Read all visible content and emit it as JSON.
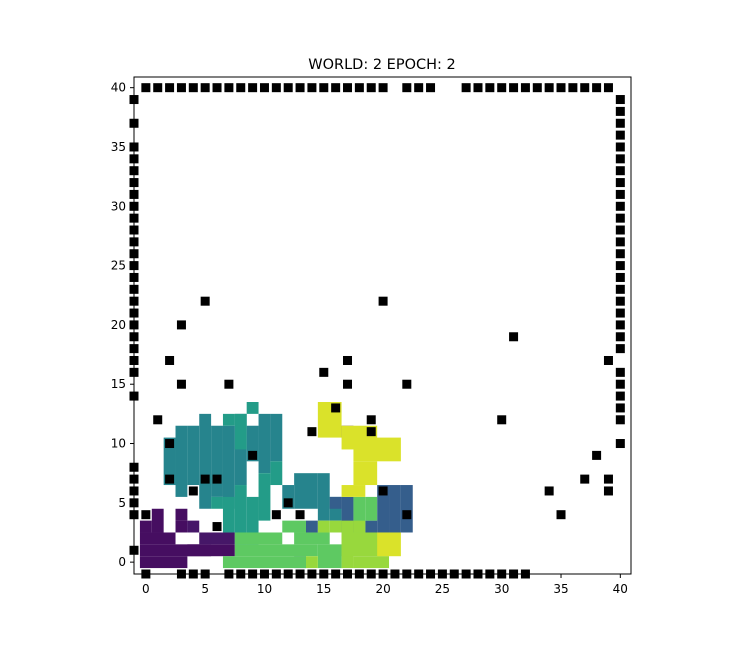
{
  "chart_data": {
    "type": "heatmap",
    "title": "WORLD: 2 EPOCH: 2",
    "xlim": [
      -1,
      40.9
    ],
    "ylim": [
      -1,
      40.9
    ],
    "xticks": [
      0,
      5,
      10,
      15,
      20,
      25,
      30,
      35,
      40
    ],
    "yticks": [
      0,
      5,
      10,
      15,
      20,
      25,
      30,
      35,
      40
    ],
    "xtick_labels": [
      "0",
      "5",
      "10",
      "15",
      "20",
      "25",
      "30",
      "35",
      "40"
    ],
    "ytick_labels": [
      "0",
      "5",
      "10",
      "15",
      "20",
      "25",
      "30",
      "35",
      "40"
    ],
    "colormap": "viridis",
    "cells": [
      {
        "v": 0.05,
        "c": [
          [
            0,
            0,
            3,
            0
          ],
          [
            0,
            1,
            5,
            1
          ],
          [
            0,
            2,
            2,
            2
          ],
          [
            0,
            3,
            0,
            3
          ],
          [
            1,
            3,
            1,
            4
          ],
          [
            3,
            3,
            3,
            3
          ],
          [
            3,
            4,
            3,
            4
          ],
          [
            4,
            1,
            7,
            1
          ]
        ]
      },
      {
        "v": 0.08,
        "c": [
          [
            5,
            2,
            7,
            2
          ],
          [
            4,
            3,
            4,
            3
          ]
        ]
      },
      {
        "v": 0.1,
        "c": [
          [
            17,
            11,
            17,
            11
          ]
        ]
      },
      {
        "v": 0.45,
        "c": [
          [
            2,
            7,
            2,
            10
          ],
          [
            3,
            6,
            3,
            11
          ],
          [
            4,
            7,
            4,
            11
          ],
          [
            5,
            5,
            5,
            12
          ],
          [
            6,
            6,
            6,
            11
          ],
          [
            7,
            5,
            7,
            11
          ],
          [
            8,
            7,
            8,
            12
          ],
          [
            9,
            9,
            9,
            11
          ],
          [
            10,
            8,
            10,
            12
          ],
          [
            11,
            9,
            11,
            12
          ],
          [
            12,
            5,
            12,
            6
          ],
          [
            13,
            5,
            13,
            7
          ],
          [
            14,
            5,
            14,
            7
          ],
          [
            15,
            4,
            15,
            7
          ],
          [
            16,
            4,
            16,
            5
          ]
        ]
      },
      {
        "v": 0.55,
        "c": [
          [
            6,
            5,
            6,
            5
          ],
          [
            7,
            3,
            7,
            5
          ],
          [
            8,
            2,
            8,
            6
          ],
          [
            9,
            2,
            9,
            5
          ],
          [
            10,
            4,
            10,
            7
          ],
          [
            11,
            7,
            11,
            8
          ],
          [
            7,
            12,
            7,
            12
          ],
          [
            8,
            10,
            8,
            12
          ],
          [
            9,
            13,
            9,
            13
          ]
        ]
      },
      {
        "v": 0.3,
        "c": [
          [
            14,
            3,
            14,
            3
          ],
          [
            16,
            5,
            16,
            5
          ],
          [
            17,
            3,
            17,
            5
          ],
          [
            20,
            3,
            20,
            6
          ],
          [
            21,
            3,
            21,
            6
          ],
          [
            22,
            3,
            22,
            6
          ],
          [
            19,
            2,
            19,
            3
          ],
          [
            13,
            0,
            13,
            0
          ]
        ]
      },
      {
        "v": 0.75,
        "c": [
          [
            7,
            0,
            13,
            0
          ],
          [
            8,
            1,
            14,
            1
          ],
          [
            8,
            2,
            11,
            2
          ],
          [
            12,
            3,
            13,
            3
          ],
          [
            13,
            2,
            15,
            2
          ],
          [
            15,
            0,
            16,
            1
          ],
          [
            18,
            3,
            18,
            5
          ],
          [
            19,
            4,
            19,
            5
          ]
        ]
      },
      {
        "v": 0.85,
        "c": [
          [
            14,
            0,
            14,
            0
          ],
          [
            17,
            0,
            17,
            3
          ],
          [
            17,
            1,
            20,
            2
          ],
          [
            18,
            0,
            20,
            0
          ],
          [
            18,
            3,
            18,
            3
          ],
          [
            16,
            3,
            16,
            3
          ],
          [
            15,
            3,
            15,
            3
          ]
        ]
      },
      {
        "v": 0.95,
        "c": [
          [
            15,
            11,
            16,
            13
          ],
          [
            17,
            10,
            19,
            11
          ],
          [
            18,
            9,
            21,
            10
          ],
          [
            18,
            7,
            19,
            8
          ],
          [
            17,
            6,
            18,
            6
          ],
          [
            20,
            1,
            21,
            2
          ]
        ]
      }
    ],
    "obstacles": [
      [
        0,
        40
      ],
      [
        1,
        40
      ],
      [
        2,
        40
      ],
      [
        3,
        40
      ],
      [
        4,
        40
      ],
      [
        5,
        40
      ],
      [
        6,
        40
      ],
      [
        7,
        40
      ],
      [
        8,
        40
      ],
      [
        9,
        40
      ],
      [
        10,
        40
      ],
      [
        11,
        40
      ],
      [
        12,
        40
      ],
      [
        13,
        40
      ],
      [
        14,
        40
      ],
      [
        15,
        40
      ],
      [
        16,
        40
      ],
      [
        17,
        40
      ],
      [
        18,
        40
      ],
      [
        19,
        40
      ],
      [
        20,
        40
      ],
      [
        22,
        40
      ],
      [
        23,
        40
      ],
      [
        24,
        40
      ],
      [
        27,
        40
      ],
      [
        28,
        40
      ],
      [
        29,
        40
      ],
      [
        30,
        40
      ],
      [
        31,
        40
      ],
      [
        32,
        40
      ],
      [
        33,
        40
      ],
      [
        34,
        40
      ],
      [
        35,
        40
      ],
      [
        36,
        40
      ],
      [
        37,
        40
      ],
      [
        38,
        40
      ],
      [
        39,
        40
      ],
      [
        40,
        39
      ],
      [
        40,
        38
      ],
      [
        40,
        37
      ],
      [
        40,
        36
      ],
      [
        40,
        35
      ],
      [
        40,
        34
      ],
      [
        40,
        33
      ],
      [
        40,
        32
      ],
      [
        40,
        31
      ],
      [
        40,
        30
      ],
      [
        40,
        29
      ],
      [
        40,
        28
      ],
      [
        40,
        27
      ],
      [
        40,
        26
      ],
      [
        40,
        25
      ],
      [
        40,
        24
      ],
      [
        40,
        23
      ],
      [
        40,
        22
      ],
      [
        40,
        21
      ],
      [
        40,
        20
      ],
      [
        40,
        19
      ],
      [
        40,
        18
      ],
      [
        40,
        16
      ],
      [
        40,
        15
      ],
      [
        40,
        14
      ],
      [
        40,
        13
      ],
      [
        40,
        12
      ],
      [
        40,
        10
      ],
      [
        -1,
        39
      ],
      [
        -1,
        37
      ],
      [
        -1,
        35
      ],
      [
        -1,
        34
      ],
      [
        -1,
        33
      ],
      [
        -1,
        32
      ],
      [
        -1,
        31
      ],
      [
        -1,
        30
      ],
      [
        -1,
        29
      ],
      [
        -1,
        28
      ],
      [
        -1,
        27
      ],
      [
        -1,
        26
      ],
      [
        -1,
        25
      ],
      [
        -1,
        24
      ],
      [
        -1,
        23
      ],
      [
        -1,
        22
      ],
      [
        -1,
        21
      ],
      [
        -1,
        20
      ],
      [
        -1,
        19
      ],
      [
        -1,
        18
      ],
      [
        -1,
        17
      ],
      [
        -1,
        16
      ],
      [
        -1,
        14
      ],
      [
        -1,
        8
      ],
      [
        -1,
        7
      ],
      [
        -1,
        6
      ],
      [
        -1,
        5
      ],
      [
        -1,
        4
      ],
      [
        -1,
        1
      ],
      [
        0,
        -1
      ],
      [
        3,
        -1
      ],
      [
        4,
        -1
      ],
      [
        5,
        -1
      ],
      [
        7,
        -1
      ],
      [
        8,
        -1
      ],
      [
        9,
        -1
      ],
      [
        10,
        -1
      ],
      [
        11,
        -1
      ],
      [
        12,
        -1
      ],
      [
        13,
        -1
      ],
      [
        14,
        -1
      ],
      [
        15,
        -1
      ],
      [
        16,
        -1
      ],
      [
        17,
        -1
      ],
      [
        18,
        -1
      ],
      [
        19,
        -1
      ],
      [
        20,
        -1
      ],
      [
        21,
        -1
      ],
      [
        22,
        -1
      ],
      [
        23,
        -1
      ],
      [
        24,
        -1
      ],
      [
        25,
        -1
      ],
      [
        26,
        -1
      ],
      [
        27,
        -1
      ],
      [
        28,
        -1
      ],
      [
        29,
        -1
      ],
      [
        30,
        -1
      ],
      [
        31,
        -1
      ],
      [
        32,
        -1
      ],
      [
        5,
        22
      ],
      [
        20,
        22
      ],
      [
        3,
        20
      ],
      [
        31,
        19
      ],
      [
        2,
        17
      ],
      [
        17,
        17
      ],
      [
        39,
        17
      ],
      [
        15,
        16
      ],
      [
        3,
        15
      ],
      [
        7,
        15
      ],
      [
        17,
        15
      ],
      [
        22,
        15
      ],
      [
        16,
        13
      ],
      [
        1,
        12
      ],
      [
        19,
        12
      ],
      [
        30,
        12
      ],
      [
        14,
        11
      ],
      [
        19,
        11
      ],
      [
        2,
        10
      ],
      [
        9,
        9
      ],
      [
        38,
        9
      ],
      [
        2,
        7
      ],
      [
        5,
        7
      ],
      [
        6,
        7
      ],
      [
        37,
        7
      ],
      [
        39,
        7
      ],
      [
        4,
        6
      ],
      [
        20,
        6
      ],
      [
        34,
        6
      ],
      [
        39,
        6
      ],
      [
        12,
        5
      ],
      [
        0,
        4
      ],
      [
        11,
        4
      ],
      [
        13,
        4
      ],
      [
        22,
        4
      ],
      [
        35,
        4
      ],
      [
        6,
        3
      ]
    ]
  }
}
